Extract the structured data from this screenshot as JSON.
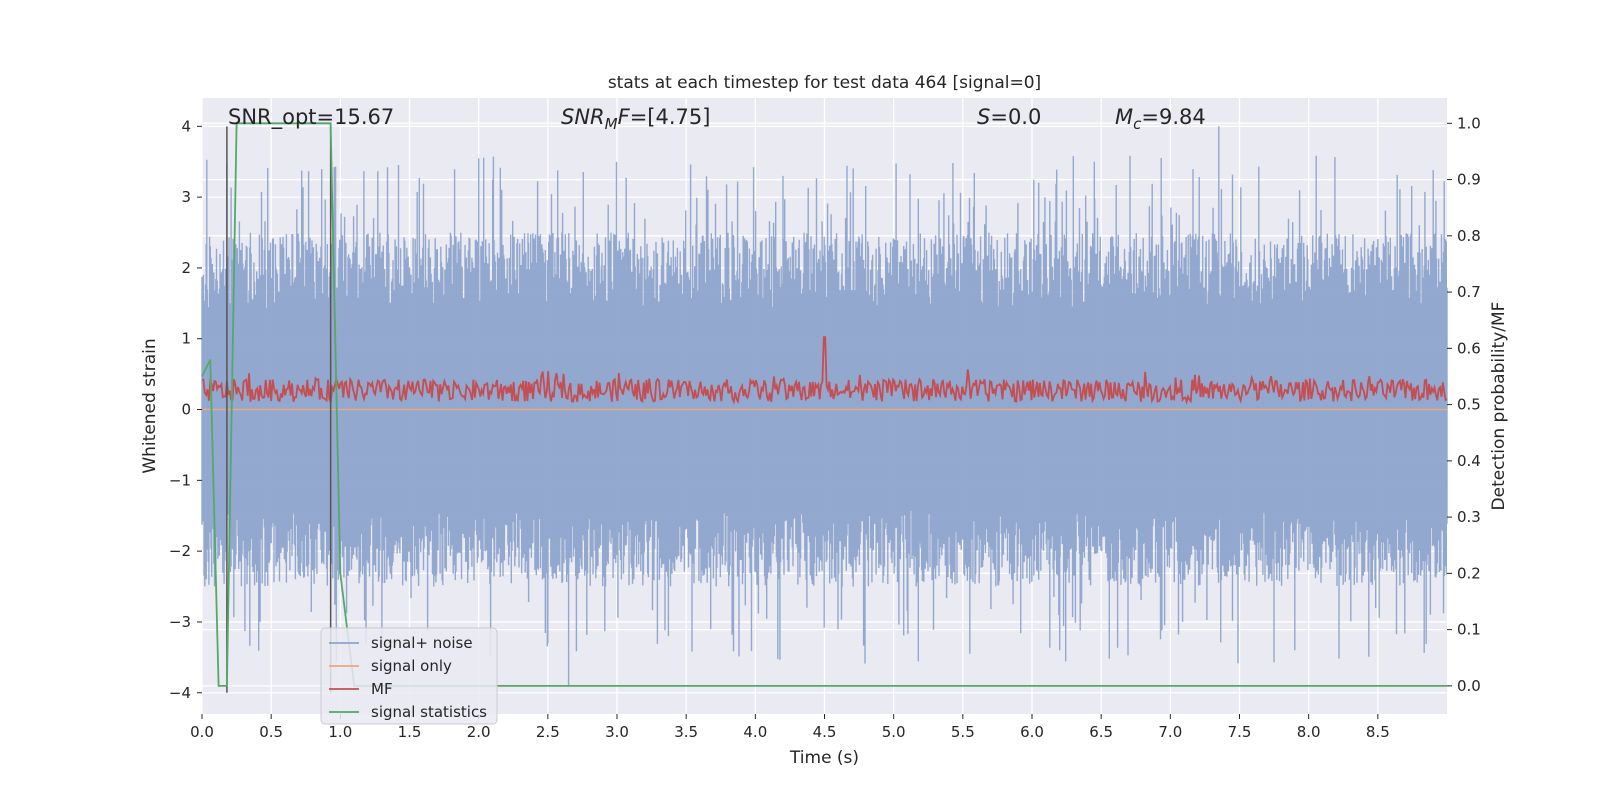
{
  "chart_data": {
    "type": "line",
    "title": "stats at each timestep for test data 464 [signal=0]",
    "xlabel": "Time (s)",
    "ylabel_left": "Whitened strain",
    "ylabel_right": "Detection probability/MF",
    "xlim": [
      0.0,
      9.0
    ],
    "ylim_left": [
      -4.3,
      4.4
    ],
    "ylim_right": [
      -0.05,
      1.045
    ],
    "x_ticks": [
      "0.0",
      "0.5",
      "1.0",
      "1.5",
      "2.0",
      "2.5",
      "3.0",
      "3.5",
      "4.0",
      "4.5",
      "5.0",
      "5.5",
      "6.0",
      "6.5",
      "7.0",
      "7.5",
      "8.0",
      "8.5"
    ],
    "y_ticks_left": [
      "−4",
      "−3",
      "−2",
      "−1",
      "0",
      "1",
      "2",
      "3",
      "4"
    ],
    "y_ticks_right": [
      "0.0",
      "0.1",
      "0.2",
      "0.3",
      "0.4",
      "0.5",
      "0.6",
      "0.7",
      "0.8",
      "0.9",
      "1.0"
    ],
    "grid": true,
    "legend_position": "lower-left",
    "annotations": {
      "snr_opt": "SNR_opt=15.67",
      "snr_mf": "[4.75]",
      "s_value": "0.0",
      "mc_value": "9.84"
    },
    "series": [
      {
        "name": "signal+ noise",
        "axis": "left",
        "color": "#8ea4cc",
        "description_envelope": {
          "positive_typical": [
            1.5,
            2.5
          ],
          "negative_typical": [
            -2.5,
            -1.5
          ],
          "peak_max": 4.0,
          "peak_min": -3.9
        }
      },
      {
        "name": "signal only",
        "axis": "left",
        "color": "#e8a882",
        "values_note": "flat at 0"
      },
      {
        "name": "MF",
        "axis": "right",
        "color": "#c44e52",
        "baseline": 0.5,
        "typical_range": [
          0.5,
          0.6
        ],
        "peak": {
          "x": 4.5,
          "y": 0.62
        }
      },
      {
        "name": "signal statistics",
        "axis": "right",
        "color": "#55a868",
        "x": [
          0.0,
          0.06,
          0.12,
          0.18,
          0.25,
          0.93,
          1.0,
          1.1,
          9.0
        ],
        "y": [
          0.55,
          0.58,
          0.0,
          0.0,
          1.0,
          1.0,
          0.2,
          0.0,
          0.0
        ]
      }
    ],
    "vertical_lines": [
      {
        "x": 0.18,
        "y_left_top": 4.0,
        "y_left_bottom": -4.0,
        "color": "#555555"
      },
      {
        "x": 0.93,
        "y_left_top": 4.0,
        "y_left_bottom": -4.0,
        "color": "#555555"
      }
    ]
  }
}
